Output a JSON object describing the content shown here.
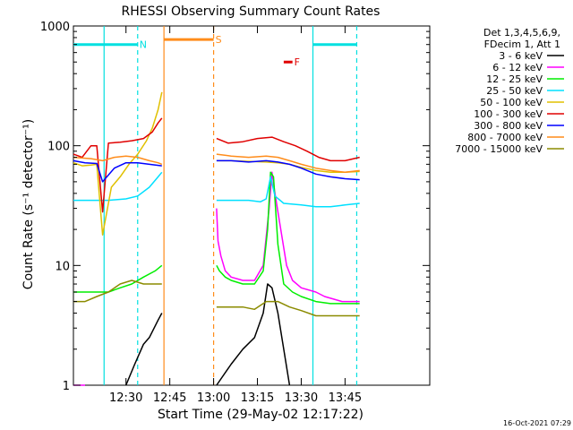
{
  "chart_data": {
    "type": "line",
    "title": "RHESSI Observing Summary Count Rates",
    "xlabel": "Start Time (29-May-02 12:17:22)",
    "ylabel": "Count Rate (s⁻¹ detector⁻¹)",
    "yscale": "log",
    "xlim_minutes": [
      12.0,
      134.0
    ],
    "ylim": [
      1,
      1000
    ],
    "x_ticks": [
      {
        "at": 30,
        "label": "12:30"
      },
      {
        "at": 45,
        "label": "12:45"
      },
      {
        "at": 60,
        "label": "13:00"
      },
      {
        "at": 75,
        "label": "13:15"
      },
      {
        "at": 90,
        "label": "13:30"
      },
      {
        "at": 105,
        "label": "13:45"
      }
    ],
    "y_ticks": [
      {
        "at": 1,
        "label": "1"
      },
      {
        "at": 10,
        "label": "10"
      },
      {
        "at": 100,
        "label": "100"
      },
      {
        "at": 1000,
        "label": "1000"
      }
    ],
    "legend_header": [
      "Det 1,3,4,5,6,9,",
      "FDecim 1, Att 1"
    ],
    "legend_position": "right",
    "flags": [
      {
        "label": "N",
        "color": "#00e0e0",
        "x_range": [
          12.0,
          34.0
        ],
        "y": 700
      },
      {
        "label": "S",
        "color": "#ff8c1a",
        "x_range": [
          43.0,
          60.0
        ],
        "y": 770
      },
      {
        "label": "F",
        "color": "#e00000",
        "x_range": [
          84.0,
          87.0
        ],
        "y": 500
      },
      {
        "label": "",
        "color": "#00e0e0",
        "x_range": [
          94.0,
          109.0
        ],
        "y": 700
      }
    ],
    "vlines": [
      {
        "x": 22.5,
        "color": "#00e0e0",
        "style": "solid"
      },
      {
        "x": 34.0,
        "color": "#00e0e0",
        "style": "dashed"
      },
      {
        "x": 43.0,
        "color": "#ff8c1a",
        "style": "solid"
      },
      {
        "x": 60.0,
        "color": "#ff8c1a",
        "style": "dashed"
      },
      {
        "x": 94.0,
        "color": "#00e0e0",
        "style": "solid"
      },
      {
        "x": 109.0,
        "color": "#00e0e0",
        "style": "dashed"
      }
    ],
    "series": [
      {
        "name": "3 - 6 keV",
        "color": "#000000",
        "segments": [
          [
            [
              30,
              1
            ],
            [
              33,
              1.5
            ],
            [
              36,
              2.2
            ],
            [
              38,
              2.5
            ],
            [
              41,
              3.5
            ],
            [
              42.3,
              4
            ]
          ],
          [
            [
              61,
              1
            ],
            [
              66,
              1.5
            ],
            [
              70,
              2
            ],
            [
              74,
              2.5
            ],
            [
              77,
              4
            ],
            [
              78.5,
              7
            ],
            [
              80,
              6.5
            ],
            [
              82,
              4
            ],
            [
              84,
              2
            ],
            [
              86,
              1
            ]
          ]
        ]
      },
      {
        "name": "6 - 12 keV",
        "color": "#ff00ff",
        "segments": [
          [
            [
              12,
              1
            ],
            [
              16,
              1
            ]
          ],
          [
            [
              61,
              30
            ],
            [
              61.5,
              16
            ],
            [
              62.5,
              12
            ],
            [
              64,
              9
            ],
            [
              66,
              8
            ],
            [
              70,
              7.5
            ],
            [
              74,
              7.5
            ],
            [
              77,
              10
            ],
            [
              79,
              30
            ],
            [
              80,
              60
            ],
            [
              81,
              40
            ],
            [
              83,
              20
            ],
            [
              85,
              10
            ],
            [
              87,
              7.5
            ],
            [
              90,
              6.5
            ],
            [
              95,
              6
            ],
            [
              98,
              5.5
            ],
            [
              104,
              5
            ],
            [
              110,
              5
            ]
          ]
        ]
      },
      {
        "name": "12 - 25 keV",
        "color": "#00ee00",
        "segments": [
          [
            [
              12,
              6
            ],
            [
              18,
              6
            ],
            [
              24,
              6
            ],
            [
              28,
              6.5
            ],
            [
              32,
              7
            ],
            [
              36,
              8
            ],
            [
              40,
              9
            ],
            [
              42.3,
              10
            ]
          ],
          [
            [
              61,
              10
            ],
            [
              62,
              9
            ],
            [
              64,
              8
            ],
            [
              66,
              7.5
            ],
            [
              70,
              7
            ],
            [
              74,
              7
            ],
            [
              77,
              9
            ],
            [
              78.5,
              20
            ],
            [
              79.5,
              60
            ],
            [
              80.5,
              55
            ],
            [
              82,
              15
            ],
            [
              84,
              7
            ],
            [
              87,
              6
            ],
            [
              90,
              5.5
            ],
            [
              95,
              5
            ],
            [
              100,
              4.8
            ],
            [
              110,
              4.8
            ]
          ]
        ]
      },
      {
        "name": "25 - 50 keV",
        "color": "#00e0ff",
        "segments": [
          [
            [
              12,
              35
            ],
            [
              18,
              35
            ],
            [
              24,
              35
            ],
            [
              30,
              36
            ],
            [
              34,
              38
            ],
            [
              38,
              45
            ],
            [
              41,
              55
            ],
            [
              42.3,
              60
            ]
          ],
          [
            [
              61,
              35
            ],
            [
              66,
              35
            ],
            [
              72,
              35
            ],
            [
              76,
              34
            ],
            [
              78,
              36
            ],
            [
              79.5,
              55
            ],
            [
              81,
              38
            ],
            [
              84,
              33
            ],
            [
              90,
              32
            ],
            [
              95,
              31
            ],
            [
              100,
              31
            ],
            [
              105,
              32
            ],
            [
              110,
              33
            ]
          ]
        ]
      },
      {
        "name": "50 - 100 keV",
        "color": "#e0c000",
        "segments": [
          [
            [
              12,
              72
            ],
            [
              15,
              68
            ],
            [
              18,
              69
            ],
            [
              20,
              70
            ],
            [
              22,
              18
            ],
            [
              25,
              45
            ],
            [
              28,
              55
            ],
            [
              31,
              70
            ],
            [
              34,
              85
            ],
            [
              37,
              110
            ],
            [
              39,
              140
            ],
            [
              41,
              200
            ],
            [
              42.3,
              280
            ]
          ],
          [
            [
              61,
              75
            ],
            [
              66,
              75
            ],
            [
              72,
              74
            ],
            [
              78,
              73
            ],
            [
              82,
              72
            ],
            [
              86,
              70
            ],
            [
              90,
              66
            ],
            [
              95,
              62
            ],
            [
              100,
              60
            ],
            [
              105,
              60
            ],
            [
              110,
              61
            ]
          ]
        ]
      },
      {
        "name": "100 - 300 keV",
        "color": "#e00000",
        "segments": [
          [
            [
              12,
              85
            ],
            [
              15,
              80
            ],
            [
              18,
              100
            ],
            [
              20,
              100
            ],
            [
              22,
              28
            ],
            [
              24,
              105
            ],
            [
              28,
              107
            ],
            [
              32,
              110
            ],
            [
              36,
              115
            ],
            [
              39,
              130
            ],
            [
              41,
              155
            ],
            [
              42.3,
              170
            ]
          ],
          [
            [
              61,
              115
            ],
            [
              65,
              105
            ],
            [
              70,
              108
            ],
            [
              75,
              115
            ],
            [
              80,
              118
            ],
            [
              84,
              108
            ],
            [
              88,
              100
            ],
            [
              92,
              90
            ],
            [
              96,
              80
            ],
            [
              100,
              75
            ],
            [
              105,
              75
            ],
            [
              110,
              80
            ]
          ]
        ]
      },
      {
        "name": "300 - 800 keV",
        "color": "#0000ff",
        "segments": [
          [
            [
              12,
              75
            ],
            [
              16,
              72
            ],
            [
              20,
              71
            ],
            [
              22,
              50
            ],
            [
              26,
              65
            ],
            [
              30,
              72
            ],
            [
              34,
              72
            ],
            [
              38,
              70
            ],
            [
              42.3,
              68
            ]
          ],
          [
            [
              61,
              75
            ],
            [
              66,
              75
            ],
            [
              72,
              73
            ],
            [
              78,
              75
            ],
            [
              82,
              73
            ],
            [
              86,
              70
            ],
            [
              90,
              65
            ],
            [
              95,
              58
            ],
            [
              100,
              55
            ],
            [
              105,
              53
            ],
            [
              110,
              52
            ]
          ]
        ]
      },
      {
        "name": "800 - 7000 keV",
        "color": "#ff8c1a",
        "segments": [
          [
            [
              12,
              80
            ],
            [
              18,
              78
            ],
            [
              22,
              75
            ],
            [
              26,
              80
            ],
            [
              30,
              82
            ],
            [
              34,
              80
            ],
            [
              38,
              75
            ],
            [
              41,
              72
            ],
            [
              42.3,
              70
            ]
          ],
          [
            [
              61,
              85
            ],
            [
              66,
              82
            ],
            [
              72,
              80
            ],
            [
              78,
              82
            ],
            [
              82,
              80
            ],
            [
              86,
              75
            ],
            [
              90,
              70
            ],
            [
              95,
              65
            ],
            [
              100,
              62
            ],
            [
              105,
              60
            ],
            [
              110,
              62
            ]
          ]
        ]
      },
      {
        "name": "7000 - 15000 keV",
        "color": "#8b8b00",
        "segments": [
          [
            [
              12,
              5
            ],
            [
              16,
              5
            ],
            [
              20,
              5.5
            ],
            [
              24,
              6
            ],
            [
              28,
              7
            ],
            [
              32,
              7.5
            ],
            [
              36,
              7
            ],
            [
              40,
              7
            ],
            [
              42.3,
              7
            ]
          ],
          [
            [
              61,
              4.5
            ],
            [
              66,
              4.5
            ],
            [
              70,
              4.5
            ],
            [
              74,
              4.3
            ],
            [
              78,
              5
            ],
            [
              82,
              5
            ],
            [
              86,
              4.5
            ],
            [
              90,
              4.2
            ],
            [
              95,
              3.8
            ],
            [
              100,
              3.8
            ],
            [
              105,
              3.8
            ],
            [
              110,
              3.8
            ]
          ]
        ]
      }
    ]
  },
  "timestamp": "16-Oct-2021 07:29"
}
